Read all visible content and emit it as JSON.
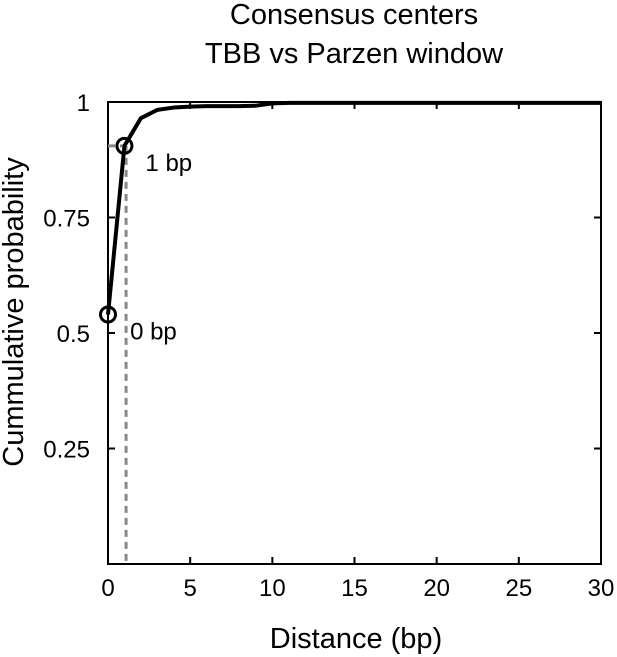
{
  "chart_data": {
    "type": "line",
    "title": [
      "Consensus centers",
      "TBB vs Parzen window"
    ],
    "xlabel": "Distance (bp)",
    "ylabel": "Cummulative probability",
    "xlim": [
      0,
      30
    ],
    "ylim": [
      0,
      1
    ],
    "xticks": [
      0,
      5,
      10,
      15,
      20,
      25,
      30
    ],
    "yticks": [
      0.25,
      0.5,
      0.75,
      1
    ],
    "ytick_labels": [
      "0.25",
      "0.5",
      "0.75",
      "1"
    ],
    "grid": false,
    "series": [
      {
        "x": [
          0,
          1,
          2,
          3,
          4,
          5,
          6,
          7,
          8,
          9,
          10,
          11,
          12,
          15,
          20,
          25,
          30
        ],
        "y": [
          0.54,
          0.905,
          0.965,
          0.983,
          0.988,
          0.99,
          0.991,
          0.991,
          0.991,
          0.992,
          0.997,
          0.998,
          0.998,
          0.998,
          0.998,
          0.998,
          0.998
        ]
      }
    ],
    "markers": [
      {
        "x": 0,
        "y": 0.54,
        "label": "0 bp"
      },
      {
        "x": 1,
        "y": 0.905,
        "label": "1 bp"
      }
    ],
    "reference_lines": {
      "vertical_x": 1.1,
      "horizontal_y": 0.905
    }
  }
}
